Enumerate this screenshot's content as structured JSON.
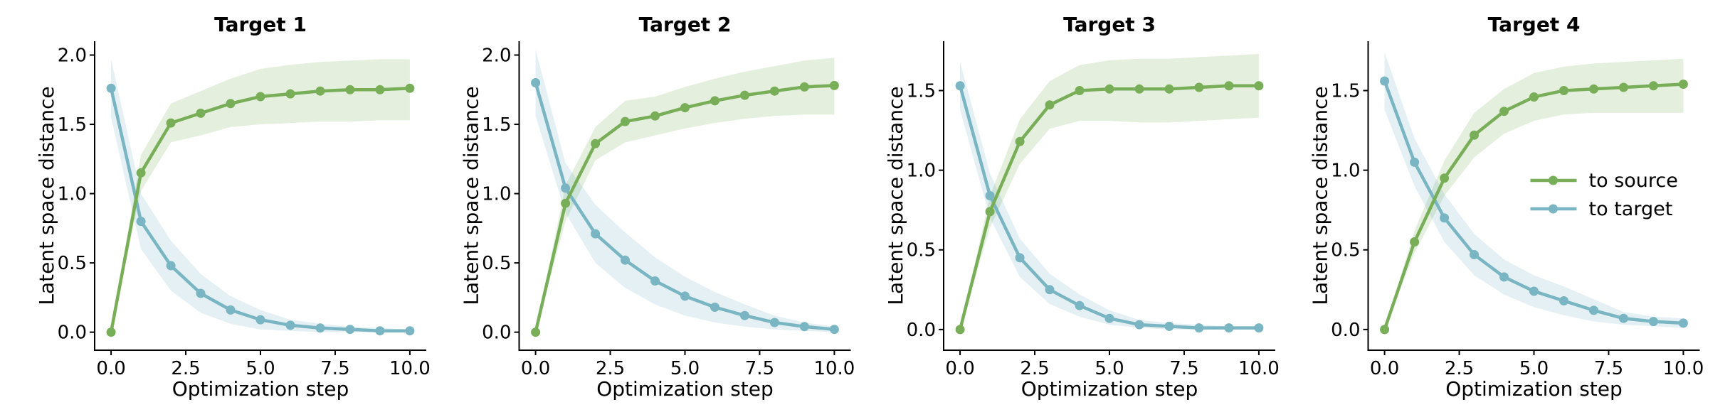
{
  "figure": {
    "background": "#ffffff",
    "band_opacity": 0.2,
    "axis_color": "#000000",
    "legend": {
      "panel_index": 3,
      "position": "center right",
      "items": [
        {
          "label": "to source",
          "color": "#79ae58"
        },
        {
          "label": "to target",
          "color": "#79b5c2"
        }
      ]
    }
  },
  "chart_data": [
    {
      "type": "line",
      "title": "Target 1",
      "xlabel": "Optimization step",
      "ylabel": "Latent space distance",
      "grid": false,
      "x": [
        0,
        1,
        2,
        3,
        4,
        5,
        6,
        7,
        8,
        9,
        10
      ],
      "xlim": [
        -0.55,
        10.55
      ],
      "xticks": [
        0.0,
        2.5,
        5.0,
        7.5,
        10.0
      ],
      "xtick_labels": [
        "0.0",
        "2.5",
        "5.0",
        "7.5",
        "10.0"
      ],
      "ylim": [
        -0.13,
        2.1
      ],
      "yticks": [
        0.0,
        0.5,
        1.0,
        1.5,
        2.0
      ],
      "ytick_labels": [
        "0.0",
        "0.5",
        "1.0",
        "1.5",
        "2.0"
      ],
      "series": [
        {
          "name": "to source",
          "color": "#79ae58",
          "values": [
            0.0,
            1.15,
            1.51,
            1.58,
            1.65,
            1.7,
            1.72,
            1.74,
            1.75,
            1.75,
            1.76
          ],
          "band_lower": [
            0.0,
            1.02,
            1.37,
            1.42,
            1.48,
            1.5,
            1.51,
            1.52,
            1.52,
            1.53,
            1.53
          ],
          "band_upper": [
            0.0,
            1.28,
            1.65,
            1.74,
            1.83,
            1.9,
            1.93,
            1.95,
            1.96,
            1.97,
            1.97
          ]
        },
        {
          "name": "to target",
          "color": "#79b5c2",
          "values": [
            1.76,
            0.8,
            0.48,
            0.28,
            0.16,
            0.09,
            0.05,
            0.03,
            0.02,
            0.01,
            0.01
          ],
          "band_lower": [
            1.55,
            0.6,
            0.3,
            0.14,
            0.06,
            0.02,
            0.01,
            0.0,
            0.0,
            0.0,
            0.0
          ],
          "band_upper": [
            1.97,
            1.0,
            0.66,
            0.42,
            0.26,
            0.16,
            0.09,
            0.06,
            0.04,
            0.03,
            0.02
          ]
        }
      ]
    },
    {
      "type": "line",
      "title": "Target 2",
      "xlabel": "Optimization step",
      "ylabel": "Latent space distance",
      "grid": false,
      "x": [
        0,
        1,
        2,
        3,
        4,
        5,
        6,
        7,
        8,
        9,
        10
      ],
      "xlim": [
        -0.55,
        10.55
      ],
      "xticks": [
        0.0,
        2.5,
        5.0,
        7.5,
        10.0
      ],
      "xtick_labels": [
        "0.0",
        "2.5",
        "5.0",
        "7.5",
        "10.0"
      ],
      "ylim": [
        -0.13,
        2.1
      ],
      "yticks": [
        0.0,
        0.5,
        1.0,
        1.5,
        2.0
      ],
      "ytick_labels": [
        "0.0",
        "0.5",
        "1.0",
        "1.5",
        "2.0"
      ],
      "series": [
        {
          "name": "to source",
          "color": "#79ae58",
          "values": [
            0.0,
            0.93,
            1.36,
            1.52,
            1.56,
            1.62,
            1.67,
            1.71,
            1.74,
            1.77,
            1.78
          ],
          "band_lower": [
            0.0,
            0.8,
            1.24,
            1.37,
            1.42,
            1.47,
            1.51,
            1.54,
            1.56,
            1.57,
            1.57
          ],
          "band_upper": [
            0.0,
            1.06,
            1.48,
            1.67,
            1.7,
            1.77,
            1.83,
            1.88,
            1.92,
            1.96,
            1.98
          ]
        },
        {
          "name": "to target",
          "color": "#79b5c2",
          "values": [
            1.8,
            1.04,
            0.71,
            0.52,
            0.37,
            0.26,
            0.18,
            0.12,
            0.07,
            0.04,
            0.02
          ],
          "band_lower": [
            1.56,
            0.86,
            0.5,
            0.32,
            0.2,
            0.12,
            0.07,
            0.04,
            0.02,
            0.01,
            0.0
          ],
          "band_upper": [
            2.04,
            1.22,
            0.92,
            0.72,
            0.54,
            0.4,
            0.29,
            0.2,
            0.12,
            0.07,
            0.04
          ]
        }
      ]
    },
    {
      "type": "line",
      "title": "Target 3",
      "xlabel": "Optimization step",
      "ylabel": "Latent space distance",
      "grid": false,
      "x": [
        0,
        1,
        2,
        3,
        4,
        5,
        6,
        7,
        8,
        9,
        10
      ],
      "xlim": [
        -0.55,
        10.55
      ],
      "xticks": [
        0.0,
        2.5,
        5.0,
        7.5,
        10.0
      ],
      "xtick_labels": [
        "0.0",
        "2.5",
        "5.0",
        "7.5",
        "10.0"
      ],
      "ylim": [
        -0.13,
        1.81
      ],
      "yticks": [
        0.0,
        0.5,
        1.0,
        1.5
      ],
      "ytick_labels": [
        "0.0",
        "0.5",
        "1.0",
        "1.5"
      ],
      "series": [
        {
          "name": "to source",
          "color": "#79ae58",
          "values": [
            0.0,
            0.74,
            1.18,
            1.41,
            1.5,
            1.51,
            1.51,
            1.51,
            1.52,
            1.53,
            1.53
          ],
          "band_lower": [
            0.0,
            0.64,
            1.04,
            1.26,
            1.31,
            1.31,
            1.3,
            1.3,
            1.31,
            1.32,
            1.33
          ],
          "band_upper": [
            0.0,
            0.84,
            1.32,
            1.56,
            1.66,
            1.69,
            1.7,
            1.7,
            1.71,
            1.72,
            1.73
          ]
        },
        {
          "name": "to target",
          "color": "#79b5c2",
          "values": [
            1.53,
            0.84,
            0.45,
            0.25,
            0.15,
            0.07,
            0.03,
            0.02,
            0.01,
            0.01,
            0.01
          ],
          "band_lower": [
            1.38,
            0.7,
            0.33,
            0.16,
            0.08,
            0.03,
            0.01,
            0.0,
            0.0,
            0.0,
            0.0
          ],
          "band_upper": [
            1.68,
            0.98,
            0.57,
            0.35,
            0.22,
            0.12,
            0.06,
            0.04,
            0.03,
            0.02,
            0.02
          ]
        }
      ]
    },
    {
      "type": "line",
      "title": "Target 4",
      "xlabel": "Optimization step",
      "ylabel": "Latent space distance",
      "grid": false,
      "x": [
        0,
        1,
        2,
        3,
        4,
        5,
        6,
        7,
        8,
        9,
        10
      ],
      "xlim": [
        -0.55,
        10.55
      ],
      "xticks": [
        0.0,
        2.5,
        5.0,
        7.5,
        10.0
      ],
      "xtick_labels": [
        "0.0",
        "2.5",
        "5.0",
        "7.5",
        "10.0"
      ],
      "ylim": [
        -0.13,
        1.81
      ],
      "yticks": [
        0.0,
        0.5,
        1.0,
        1.5
      ],
      "ytick_labels": [
        "0.0",
        "0.5",
        "1.0",
        "1.5"
      ],
      "series": [
        {
          "name": "to source",
          "color": "#79ae58",
          "values": [
            0.0,
            0.55,
            0.95,
            1.22,
            1.37,
            1.46,
            1.5,
            1.51,
            1.52,
            1.53,
            1.54
          ],
          "band_lower": [
            0.0,
            0.48,
            0.84,
            1.08,
            1.23,
            1.31,
            1.35,
            1.36,
            1.36,
            1.36,
            1.36
          ],
          "band_upper": [
            0.0,
            0.62,
            1.06,
            1.36,
            1.51,
            1.61,
            1.65,
            1.67,
            1.68,
            1.69,
            1.7
          ]
        },
        {
          "name": "to target",
          "color": "#79b5c2",
          "values": [
            1.56,
            1.05,
            0.7,
            0.47,
            0.33,
            0.24,
            0.18,
            0.12,
            0.07,
            0.05,
            0.04
          ],
          "band_lower": [
            1.38,
            0.9,
            0.55,
            0.34,
            0.22,
            0.14,
            0.09,
            0.05,
            0.03,
            0.02,
            0.01
          ],
          "band_upper": [
            1.74,
            1.2,
            0.85,
            0.6,
            0.44,
            0.34,
            0.27,
            0.19,
            0.11,
            0.08,
            0.07
          ]
        }
      ]
    }
  ]
}
